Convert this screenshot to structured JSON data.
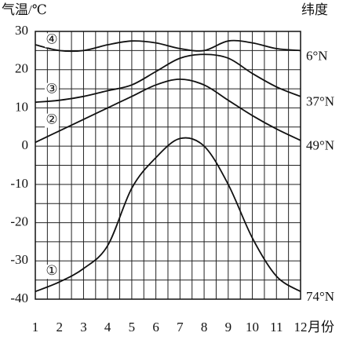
{
  "chart_data": {
    "type": "line",
    "y_label": "气温/℃",
    "y2_label": "纬度",
    "x_label": "月份",
    "x": [
      1,
      2,
      3,
      4,
      5,
      6,
      7,
      8,
      9,
      10,
      11,
      12
    ],
    "series": [
      {
        "name": "①",
        "latitude": "74°N",
        "color": "#111111",
        "values": [
          -38,
          -35.5,
          -32,
          -26,
          -11,
          -3,
          2,
          0,
          -10,
          -24,
          -34,
          -38
        ]
      },
      {
        "name": "②",
        "latitude": "49°N",
        "color": "#111111",
        "values": [
          1,
          4,
          7,
          10,
          13,
          16,
          17.5,
          16,
          12,
          8,
          4.5,
          1.5
        ]
      },
      {
        "name": "③",
        "latitude": "37°N",
        "color": "#111111",
        "values": [
          11.5,
          12,
          13,
          14.5,
          16,
          19.5,
          23,
          24,
          23,
          19,
          15.5,
          13
        ]
      },
      {
        "name": "④",
        "latitude": "6°N",
        "color": "#111111",
        "values": [
          26.5,
          25,
          25,
          26.5,
          27.5,
          27,
          25.5,
          25,
          27.5,
          27,
          25.5,
          25
        ]
      }
    ],
    "xlim": [
      1,
      12
    ],
    "ylim": [
      -40,
      30
    ],
    "xticks": [
      1,
      2,
      3,
      4,
      5,
      6,
      7,
      8,
      9,
      10,
      11,
      12
    ],
    "yticks": [
      -40,
      -30,
      -20,
      -10,
      0,
      10,
      20,
      30
    ],
    "grid": true,
    "minor_grid": true
  }
}
